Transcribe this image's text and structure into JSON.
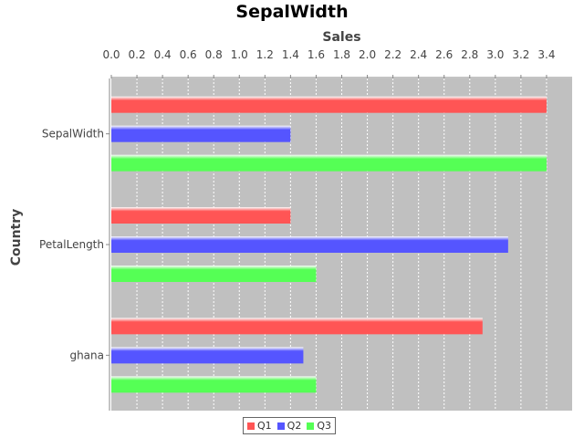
{
  "chart_data": {
    "type": "bar",
    "orientation": "horizontal",
    "title": "SepalWidth",
    "xlabel": "Sales",
    "ylabel": "Country",
    "categories": [
      "SepalWidth",
      "PetalLength",
      "ghana"
    ],
    "series": [
      {
        "name": "Q1",
        "values": [
          3.4,
          1.4,
          2.9
        ]
      },
      {
        "name": "Q2",
        "values": [
          1.4,
          3.1,
          1.5
        ]
      },
      {
        "name": "Q3",
        "values": [
          3.4,
          1.6,
          1.6
        ]
      }
    ],
    "xlim": [
      0,
      3.6
    ],
    "ticks": [
      "0.0",
      "0.2",
      "0.4",
      "0.6",
      "0.8",
      "1.0",
      "1.2",
      "1.4",
      "1.6",
      "1.8",
      "2.0",
      "2.2",
      "2.4",
      "2.6",
      "2.8",
      "3.0",
      "3.2",
      "3.4"
    ],
    "colors": {
      "Q1": "#ff5555",
      "Q2": "#5555ff",
      "Q3": "#55ff55",
      "plot_bg": "#c0c0c0"
    },
    "grid": true,
    "legend_position": "bottom"
  }
}
